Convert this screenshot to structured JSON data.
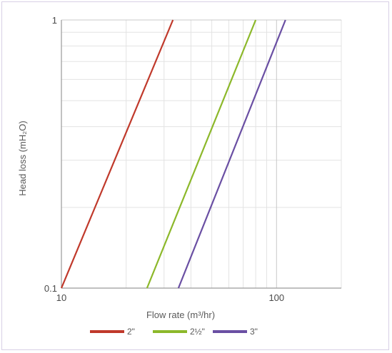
{
  "colors": {
    "frame_border": "#d8cfe6",
    "grid_major": "#c8c8c8",
    "grid_minor": "#e3e3e3",
    "axis": "#9a9a9a"
  },
  "chart_data": {
    "type": "line",
    "title": "",
    "xlabel": "Flow rate (m³/hr)",
    "ylabel": "Head loss (mH₂O)",
    "x_scale": "log",
    "y_scale": "log",
    "xlim": [
      10,
      200
    ],
    "ylim": [
      0.1,
      1
    ],
    "x_tick_labels": [
      {
        "value": 10,
        "label": "10"
      },
      {
        "value": 100,
        "label": "100"
      }
    ],
    "y_tick_labels": [
      {
        "value": 0.1,
        "label": "0.1"
      },
      {
        "value": 1,
        "label": "1"
      }
    ],
    "grid": true,
    "legend_position": "bottom",
    "series": [
      {
        "name": "2\"",
        "color": "#c0392b",
        "points": [
          [
            10,
            0.1
          ],
          [
            33,
            1
          ]
        ]
      },
      {
        "name": "2½\"",
        "color": "#8cb82a",
        "points": [
          [
            25,
            0.1
          ],
          [
            80,
            1
          ]
        ]
      },
      {
        "name": "3\"",
        "color": "#6a4fa3",
        "points": [
          [
            35,
            0.1
          ],
          [
            110,
            1
          ]
        ]
      }
    ]
  }
}
